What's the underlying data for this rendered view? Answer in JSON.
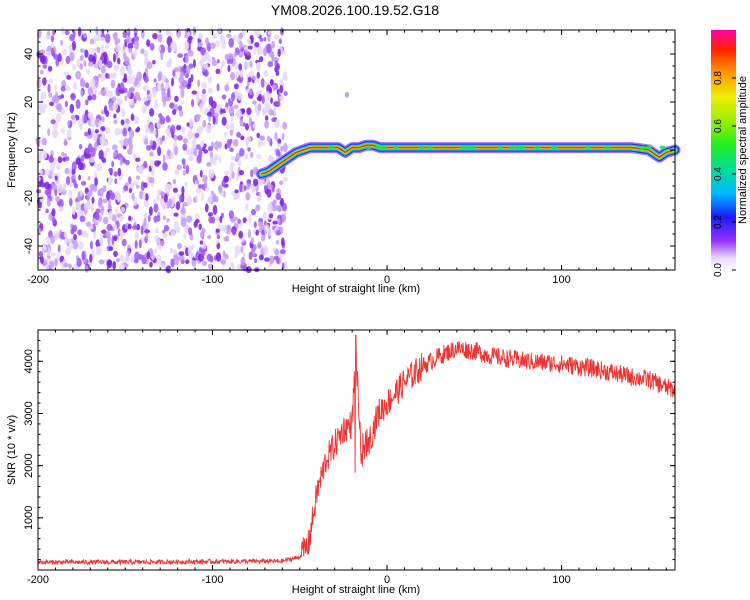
{
  "title": "YM08.2026.100.19.52.G18",
  "chart_data": [
    {
      "type": "heatmap",
      "xlabel": "Height of straight line (km)",
      "ylabel": "Frequency (Hz)",
      "xlim": [
        -200,
        165
      ],
      "ylim": [
        -50,
        50
      ],
      "xticks": [
        -200,
        -100,
        0,
        100
      ],
      "yticks": [
        -40,
        -20,
        0,
        20,
        40
      ],
      "colorbar": {
        "label": "Normalized spectral amplitude",
        "range": [
          0,
          1
        ],
        "ticks": [
          0.0,
          0.2,
          0.4,
          0.6,
          0.8
        ]
      },
      "noise_region": {
        "x_min": -200,
        "x_max": -58
      },
      "ridge": {
        "x": [
          -72,
          -68,
          -64,
          -60,
          -56,
          -52,
          -48,
          -44,
          -40,
          -36,
          -32,
          -28,
          -24,
          -20,
          -16,
          -12,
          -8,
          -4,
          0,
          20,
          50,
          80,
          110,
          140,
          150,
          156,
          160,
          165
        ],
        "y": [
          -10,
          -9,
          -7,
          -5,
          -3,
          -1,
          0,
          1,
          1,
          1,
          1,
          1,
          -1,
          1,
          1,
          2,
          2,
          1,
          1,
          1,
          1,
          1,
          1,
          1,
          0,
          -3,
          -1,
          0
        ]
      }
    },
    {
      "type": "line",
      "xlabel": "Height of straight line (km)",
      "ylabel": "SNR (10 * v/v)",
      "xlim": [
        -200,
        165
      ],
      "ylim": [
        0,
        4600
      ],
      "xticks": [
        -200,
        -100,
        0,
        100
      ],
      "yticks": [
        1000,
        2000,
        3000,
        4000
      ],
      "color": "#ee3333",
      "x": [
        -200,
        -150,
        -100,
        -60,
        -50,
        -45,
        -40,
        -35,
        -30,
        -25,
        -20,
        -18,
        -15,
        -10,
        -5,
        0,
        10,
        20,
        30,
        40,
        50,
        60,
        80,
        100,
        120,
        140,
        150,
        160,
        165
      ],
      "y": [
        150,
        150,
        160,
        170,
        250,
        500,
        1500,
        2100,
        2400,
        2700,
        2800,
        4200,
        2300,
        2500,
        3000,
        3200,
        3600,
        3900,
        4100,
        4250,
        4200,
        4100,
        4000,
        3950,
        3850,
        3700,
        3650,
        3500,
        3450
      ]
    }
  ]
}
